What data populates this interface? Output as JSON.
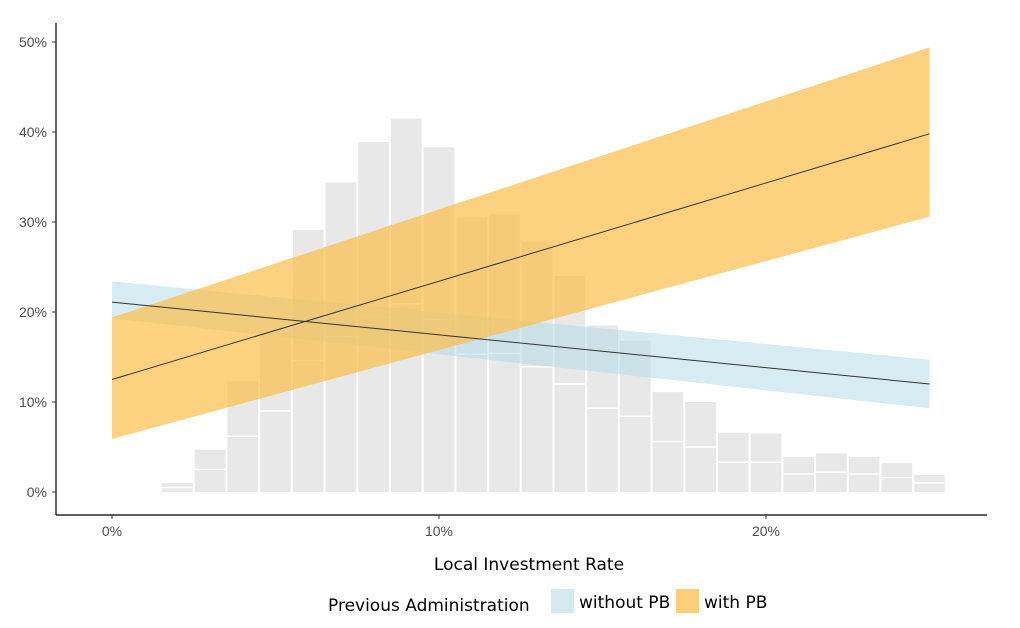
{
  "chart_data": {
    "type": "line",
    "xlabel": "Local Investment Rate",
    "x_ticks": [
      "0%",
      "10%",
      "20%"
    ],
    "x_tick_values": [
      0,
      10,
      20
    ],
    "y_ticks": [
      "0%",
      "10%",
      "20%",
      "30%",
      "40%",
      "50%"
    ],
    "y_tick_values": [
      0,
      10,
      20,
      30,
      40,
      50
    ],
    "xlim": [
      -1.7,
      26.7
    ],
    "ylim": [
      -2.2,
      52
    ],
    "grid": false,
    "legend": {
      "title": "Previous Administration",
      "position": "bottom",
      "entries": [
        {
          "label": "without PB",
          "color": "#d4e9f0"
        },
        {
          "label": "with PB",
          "color": "#fcd07b"
        }
      ]
    },
    "series": [
      {
        "name": "without PB",
        "color": "#add8e6",
        "x": [
          0,
          25
        ],
        "fit": [
          21.1,
          12.0
        ],
        "lower": [
          19.3,
          9.3
        ],
        "upper": [
          23.4,
          14.7
        ]
      },
      {
        "name": "with PB",
        "color": "#fbbf4a",
        "x": [
          0,
          25
        ],
        "fit": [
          12.5,
          39.8
        ],
        "lower": [
          5.9,
          30.6
        ],
        "upper": [
          19.4,
          49.4
        ]
      }
    ],
    "histogram": {
      "color": "#e8e8e8",
      "bin_width": 1,
      "bin_centers": [
        2,
        3,
        4,
        5,
        6,
        7,
        8,
        9,
        10,
        11,
        12,
        13,
        14,
        15,
        16,
        17,
        18,
        19,
        20,
        21,
        22,
        23,
        24,
        25
      ],
      "counts": [
        1.0,
        4.7,
        12.3,
        17.9,
        29.1,
        34.4,
        38.9,
        41.5,
        38.3,
        30.5,
        30.8,
        27.8,
        24.0,
        18.5,
        16.8,
        11.1,
        10.0,
        6.6,
        6.5,
        3.9,
        4.3,
        3.9,
        3.2,
        1.9
      ],
      "inner_dividers": [
        0.5,
        2.5,
        6.2,
        9.0,
        14.6,
        17.3,
        19.4,
        20.9,
        19.2,
        15.3,
        15.4,
        13.9,
        12.0,
        9.3,
        8.4,
        5.6,
        5.0,
        3.3,
        3.3,
        2.0,
        2.2,
        2.0,
        1.6,
        1.0
      ]
    }
  }
}
